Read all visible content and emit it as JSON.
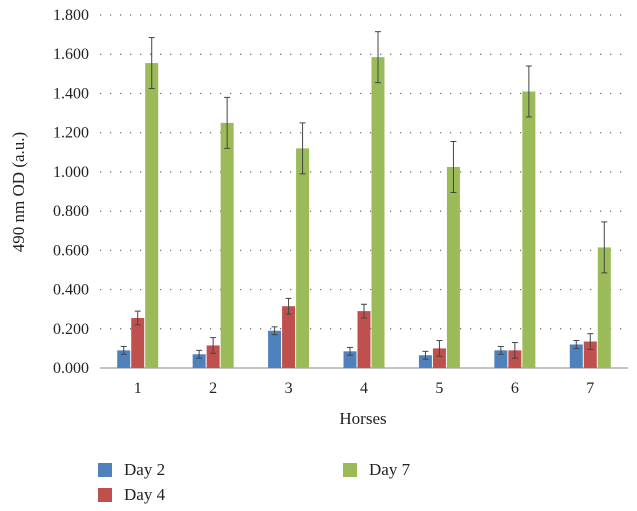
{
  "chart_data": {
    "type": "bar",
    "title": "",
    "xlabel": "Horses",
    "ylabel": "490 nm OD (a.u.)",
    "categories": [
      "1",
      "2",
      "3",
      "4",
      "5",
      "6",
      "7"
    ],
    "ylim": [
      0,
      1.8
    ],
    "yticks": [
      "0.000",
      "0.200",
      "0.400",
      "0.600",
      "0.800",
      "1.000",
      "1.200",
      "1.400",
      "1.600",
      "1.800"
    ],
    "grid": "horizontal dotted",
    "legend_position": "bottom",
    "series": [
      {
        "name": "Day 2",
        "color": "#4f81bd",
        "values": [
          0.09,
          0.07,
          0.19,
          0.085,
          0.065,
          0.09,
          0.12
        ],
        "errors": [
          0.02,
          0.02,
          0.02,
          0.02,
          0.02,
          0.02,
          0.02
        ]
      },
      {
        "name": "Day 4",
        "color": "#c0504d",
        "values": [
          0.255,
          0.115,
          0.315,
          0.29,
          0.1,
          0.09,
          0.135
        ],
        "errors": [
          0.035,
          0.04,
          0.04,
          0.035,
          0.04,
          0.04,
          0.04
        ]
      },
      {
        "name": "Day 7",
        "color": "#9bbb59",
        "values": [
          1.555,
          1.25,
          1.12,
          1.585,
          1.025,
          1.41,
          0.615
        ],
        "errors": [
          0.13,
          0.13,
          0.13,
          0.13,
          0.13,
          0.13,
          0.13
        ]
      }
    ]
  }
}
